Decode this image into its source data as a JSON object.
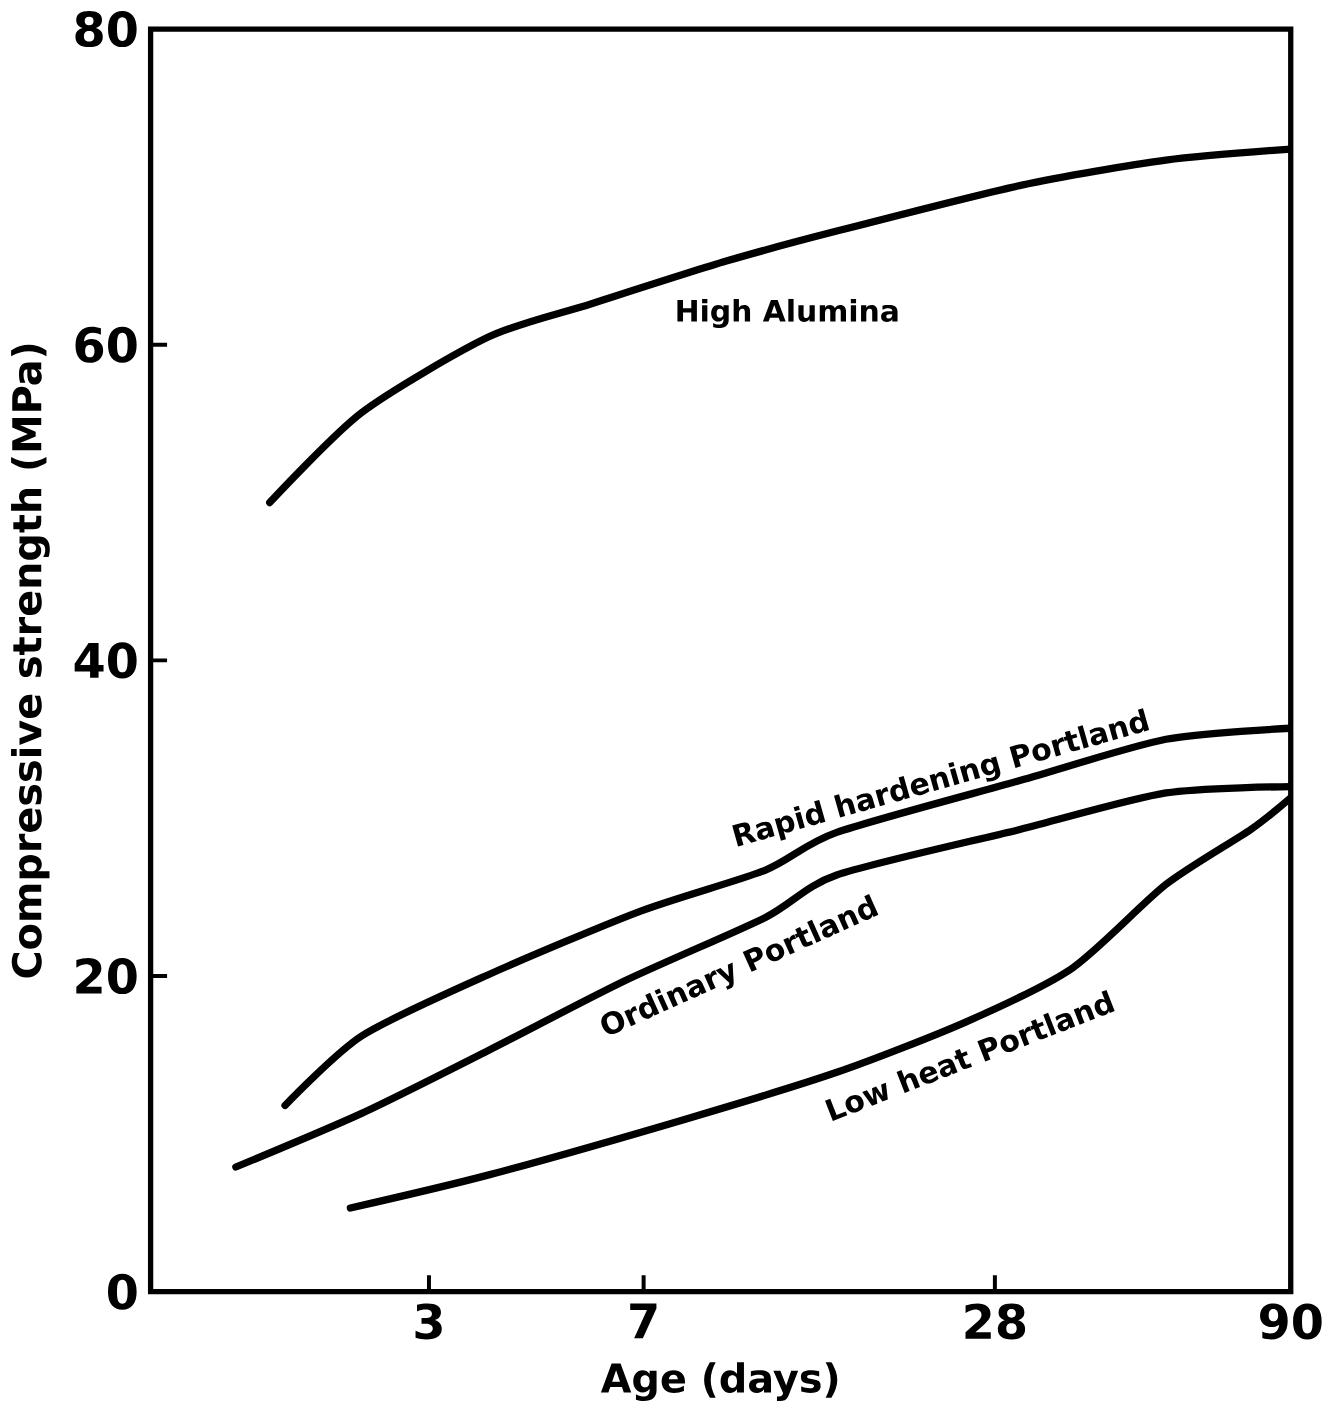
{
  "chart_data": {
    "type": "line",
    "xlabel": "Age (days)",
    "ylabel": "Compressive strength (MPa)",
    "log": "x",
    "xlim": [
      1,
      90
    ],
    "xticks": [
      3,
      7,
      28,
      90
    ],
    "ylim": [
      0,
      80
    ],
    "yticks": [
      0,
      20,
      40,
      60,
      80
    ],
    "series": [
      {
        "name": "High Alumina",
        "color": "#000000",
        "x": [
          1.6,
          2.3,
          3.8,
          5.7,
          9.7,
          15,
          31,
          55,
          90
        ],
        "values": [
          50.0,
          55.7,
          60.5,
          62.6,
          65.3,
          67.2,
          70.1,
          71.7,
          72.4
        ]
      },
      {
        "name": "Rapid hardening Portland",
        "color": "#000000",
        "x": [
          1.7,
          2.3,
          3.8,
          6.9,
          11.3,
          15,
          31,
          55,
          90
        ],
        "values": [
          11.8,
          16.2,
          20.1,
          24.1,
          26.7,
          29.1,
          32.4,
          35.0,
          35.7
        ]
      },
      {
        "name": "Ordinary Portland",
        "color": "#000000",
        "x": [
          1.4,
          2.3,
          3.8,
          6.5,
          11.3,
          15,
          31,
          55,
          90
        ],
        "values": [
          7.9,
          11.3,
          15.3,
          19.7,
          23.7,
          26.4,
          29.3,
          31.6,
          32.0
        ]
      },
      {
        "name": "Low heat Portland",
        "color": "#000000",
        "x": [
          2.2,
          3.8,
          8.2,
          15,
          25,
          38,
          55,
          77,
          90
        ],
        "values": [
          5.3,
          7.4,
          10.9,
          13.9,
          17.1,
          20.5,
          25.8,
          29.3,
          31.3
        ]
      }
    ]
  }
}
